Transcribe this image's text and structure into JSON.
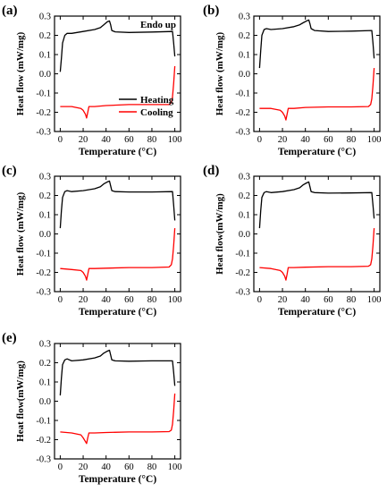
{
  "figure": {
    "xlabel": "Temperature (°C)",
    "ylabel": "Heat flow (mW/mg)",
    "annotation": "Endo up"
  },
  "colors": {
    "heating": "#000000",
    "cooling": "#ff0000",
    "axis": "#000000"
  },
  "chart_data": [
    {
      "type": "line",
      "panel_label": "(a)",
      "xlim": [
        -5,
        105
      ],
      "ylim": [
        -0.3,
        0.3
      ],
      "xticks": [
        0,
        20,
        40,
        60,
        80,
        100
      ],
      "yticks": [
        -0.3,
        -0.2,
        -0.1,
        0.0,
        0.1,
        0.2,
        0.3
      ],
      "xlabel": "Temperature (°C)",
      "ylabel": "Heat flow (mW/mg)",
      "annotation": "Endo up",
      "legend": {
        "placement": "bottom-right",
        "entries": [
          "Heating",
          "Cooling"
        ]
      },
      "series": [
        {
          "name": "Heating",
          "color": "#000000",
          "x": [
            0,
            1,
            2,
            4,
            6,
            10,
            20,
            30,
            35,
            38,
            41,
            43,
            44,
            45,
            48,
            60,
            80,
            98,
            99,
            100
          ],
          "y": [
            0.01,
            0.08,
            0.16,
            0.2,
            0.21,
            0.21,
            0.22,
            0.23,
            0.24,
            0.255,
            0.27,
            0.275,
            0.255,
            0.225,
            0.218,
            0.215,
            0.217,
            0.22,
            0.16,
            0.09
          ]
        },
        {
          "name": "Cooling",
          "color": "#ff0000",
          "x": [
            0,
            10,
            18,
            20,
            22,
            23,
            24,
            25,
            30,
            40,
            60,
            80,
            95,
            97,
            98,
            99,
            100
          ],
          "y": [
            -0.17,
            -0.17,
            -0.18,
            -0.19,
            -0.21,
            -0.23,
            -0.2,
            -0.17,
            -0.17,
            -0.165,
            -0.16,
            -0.16,
            -0.16,
            -0.15,
            -0.12,
            -0.05,
            0.04
          ]
        }
      ]
    },
    {
      "type": "line",
      "panel_label": "(b)",
      "xlim": [
        -5,
        105
      ],
      "ylim": [
        -0.3,
        0.3
      ],
      "xticks": [
        0,
        20,
        40,
        60,
        80,
        100
      ],
      "yticks": [
        -0.3,
        -0.2,
        -0.1,
        0.0,
        0.1,
        0.2,
        0.3
      ],
      "xlabel": "Temperature (°C)",
      "ylabel": "Heat flow (mW/mg)",
      "series": [
        {
          "color": "#000000",
          "x": [
            0,
            1,
            2,
            4,
            6,
            10,
            20,
            30,
            35,
            38,
            41,
            43,
            44,
            45,
            48,
            60,
            80,
            98,
            99,
            100
          ],
          "y": [
            0.03,
            0.12,
            0.2,
            0.23,
            0.235,
            0.23,
            0.235,
            0.245,
            0.255,
            0.265,
            0.275,
            0.28,
            0.26,
            0.235,
            0.225,
            0.22,
            0.222,
            0.225,
            0.16,
            0.08
          ]
        },
        {
          "color": "#ff0000",
          "x": [
            0,
            10,
            18,
            20,
            22,
            23,
            24,
            25,
            30,
            40,
            60,
            80,
            95,
            97,
            98,
            99,
            100
          ],
          "y": [
            -0.18,
            -0.18,
            -0.19,
            -0.2,
            -0.22,
            -0.24,
            -0.21,
            -0.18,
            -0.18,
            -0.175,
            -0.172,
            -0.172,
            -0.17,
            -0.16,
            -0.13,
            -0.06,
            0.03
          ]
        }
      ]
    },
    {
      "type": "line",
      "panel_label": "(c)",
      "xlim": [
        -5,
        105
      ],
      "ylim": [
        -0.3,
        0.3
      ],
      "xticks": [
        0,
        20,
        40,
        60,
        80,
        100
      ],
      "yticks": [
        -0.3,
        -0.2,
        -0.1,
        0.0,
        0.1,
        0.2,
        0.3
      ],
      "xlabel": "Temperature (°C)",
      "ylabel": "Heat flow (mW/mg)",
      "series": [
        {
          "color": "#000000",
          "x": [
            0,
            1,
            2,
            4,
            6,
            10,
            20,
            30,
            35,
            38,
            41,
            43,
            44,
            45,
            48,
            60,
            80,
            98,
            99,
            100
          ],
          "y": [
            0.03,
            0.12,
            0.19,
            0.22,
            0.225,
            0.22,
            0.225,
            0.235,
            0.245,
            0.26,
            0.27,
            0.275,
            0.25,
            0.225,
            0.22,
            0.218,
            0.218,
            0.22,
            0.15,
            0.07
          ]
        },
        {
          "color": "#ff0000",
          "x": [
            0,
            10,
            18,
            20,
            22,
            23,
            24,
            25,
            30,
            40,
            60,
            80,
            95,
            97,
            98,
            99,
            100
          ],
          "y": [
            -0.18,
            -0.185,
            -0.19,
            -0.2,
            -0.22,
            -0.24,
            -0.21,
            -0.18,
            -0.18,
            -0.178,
            -0.175,
            -0.175,
            -0.172,
            -0.16,
            -0.13,
            -0.06,
            0.03
          ]
        }
      ]
    },
    {
      "type": "line",
      "panel_label": "(d)",
      "xlim": [
        -5,
        105
      ],
      "ylim": [
        -0.3,
        0.3
      ],
      "xticks": [
        0,
        20,
        40,
        60,
        80,
        100
      ],
      "yticks": [
        -0.3,
        -0.2,
        -0.1,
        0.0,
        0.1,
        0.2,
        0.3
      ],
      "xlabel": "Temperature (°C)",
      "ylabel": "Heat flow(mW/mg)",
      "series": [
        {
          "color": "#000000",
          "x": [
            0,
            1,
            2,
            4,
            6,
            10,
            20,
            30,
            35,
            38,
            41,
            43,
            44,
            45,
            48,
            60,
            80,
            98,
            99,
            100
          ],
          "y": [
            0.03,
            0.12,
            0.19,
            0.215,
            0.22,
            0.215,
            0.22,
            0.23,
            0.24,
            0.255,
            0.265,
            0.27,
            0.245,
            0.22,
            0.215,
            0.212,
            0.213,
            0.215,
            0.15,
            0.08
          ]
        },
        {
          "color": "#ff0000",
          "x": [
            0,
            10,
            18,
            20,
            22,
            23,
            24,
            25,
            30,
            40,
            60,
            80,
            95,
            97,
            98,
            99,
            100
          ],
          "y": [
            -0.175,
            -0.18,
            -0.19,
            -0.2,
            -0.22,
            -0.24,
            -0.21,
            -0.175,
            -0.175,
            -0.173,
            -0.17,
            -0.17,
            -0.168,
            -0.16,
            -0.13,
            -0.06,
            0.03
          ]
        }
      ]
    },
    {
      "type": "line",
      "panel_label": "(e)",
      "xlim": [
        -5,
        105
      ],
      "ylim": [
        -0.3,
        0.3
      ],
      "xticks": [
        0,
        20,
        40,
        60,
        80,
        100
      ],
      "yticks": [
        -0.3,
        -0.2,
        -0.1,
        0.0,
        0.1,
        0.2,
        0.3
      ],
      "xlabel": "Temperature (°C)",
      "ylabel": "Heat flow(mW/mg)",
      "series": [
        {
          "color": "#000000",
          "x": [
            0,
            1,
            2,
            4,
            6,
            10,
            20,
            30,
            35,
            38,
            41,
            43,
            44,
            45,
            48,
            60,
            80,
            98,
            99,
            100
          ],
          "y": [
            0.03,
            0.12,
            0.19,
            0.215,
            0.22,
            0.21,
            0.215,
            0.225,
            0.235,
            0.25,
            0.26,
            0.265,
            0.24,
            0.215,
            0.21,
            0.208,
            0.21,
            0.21,
            0.15,
            0.08
          ]
        },
        {
          "color": "#ff0000",
          "x": [
            0,
            10,
            18,
            20,
            22,
            23,
            24,
            25,
            30,
            40,
            60,
            80,
            95,
            97,
            98,
            99,
            100
          ],
          "y": [
            -0.16,
            -0.165,
            -0.175,
            -0.19,
            -0.21,
            -0.22,
            -0.19,
            -0.165,
            -0.165,
            -0.163,
            -0.16,
            -0.16,
            -0.158,
            -0.15,
            -0.12,
            -0.05,
            0.04
          ]
        }
      ]
    }
  ]
}
